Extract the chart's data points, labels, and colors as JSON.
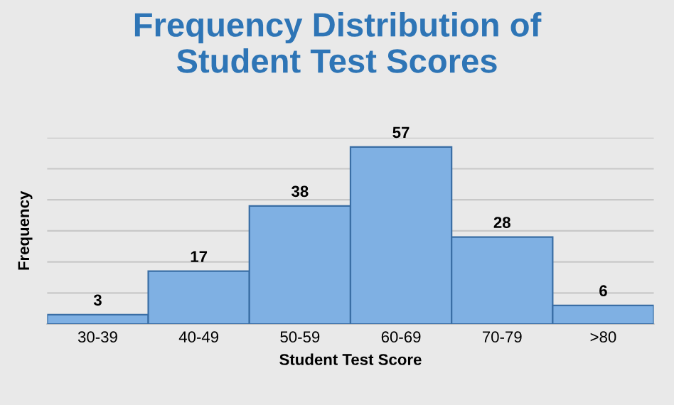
{
  "chart_data": {
    "type": "bar",
    "title": "Frequency Distribution of\nStudent Test Scores",
    "xlabel": "Student Test Score",
    "ylabel": "Frequency",
    "categories": [
      "30-39",
      "40-49",
      "50-59",
      "60-69",
      "70-79",
      ">80"
    ],
    "values": [
      3,
      17,
      38,
      57,
      28,
      6
    ],
    "color": "#7fb0e3",
    "ylim": [
      0,
      60
    ],
    "yticks": [
      {
        "value": 0,
        "label": null
      },
      {
        "value": 10,
        "label": null
      },
      {
        "value": 20,
        "label": null
      },
      {
        "value": 30,
        "label": null
      },
      {
        "value": 40,
        "label": null
      },
      {
        "value": 50,
        "label": null
      },
      {
        "value": 60,
        "label": null
      }
    ],
    "tick_labels": "x",
    "grid": "y",
    "data_labels": true
  }
}
